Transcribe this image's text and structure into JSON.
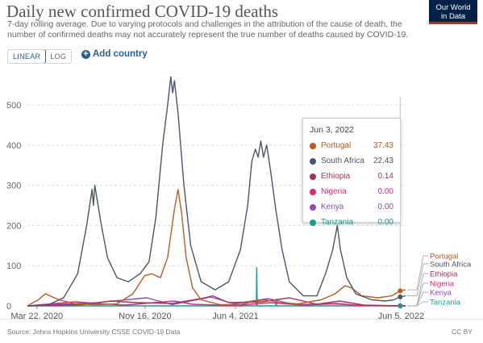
{
  "header": {
    "title": "Daily new confirmed COVID-19 deaths",
    "subtitle": "7-day rolling average. Due to varying protocols and challenges in the attribution of the cause of death, the number of confirmed deaths may not accurately represent the true number of deaths caused by COVID-19.",
    "logo_line1": "Our World",
    "logo_line2": "in Data"
  },
  "controls": {
    "linear_label": "LINEAR",
    "log_label": "LOG",
    "add_country_label": "Add country"
  },
  "tooltip": {
    "date": "Jun 3, 2022",
    "rows": [
      {
        "name": "Portugal",
        "value": "37.43",
        "color": "#c15a1e"
      },
      {
        "name": "South Africa",
        "value": "22.43",
        "color": "#4c5569"
      },
      {
        "name": "Ethiopia",
        "value": "0.14",
        "color": "#a63458"
      },
      {
        "name": "Nigeria",
        "value": "0.00",
        "color": "#e0257f"
      },
      {
        "name": "Kenya",
        "value": "0.00",
        "color": "#8e4bb5"
      },
      {
        "name": "Tanzania",
        "value": "0.00",
        "color": "#179c8a"
      }
    ]
  },
  "footer": {
    "source": "Source: Johns Hopkins University CSSE COVID-19 Data",
    "license": "CC BY"
  },
  "chart_data": {
    "type": "line",
    "title": "Daily new confirmed COVID-19 deaths",
    "xlabel": "",
    "ylabel": "",
    "ylim": [
      0,
      550
    ],
    "yticks": [
      0,
      100,
      200,
      300,
      400,
      500
    ],
    "x_start": "2020-03-01",
    "x_end": "2022-06-15",
    "xticks": [
      {
        "date": "2020-03-22",
        "label": "Mar 22, 2020"
      },
      {
        "date": "2020-11-16",
        "label": "Nov 16, 2020"
      },
      {
        "date": "2021-06-04",
        "label": "Jun 4, 2021"
      },
      {
        "date": "2022-06-05",
        "label": "Jun 5, 2022"
      }
    ],
    "grid": "horizontal dashed",
    "legend": "right (end labels)",
    "series": [
      {
        "name": "South Africa",
        "color": "#4c5569",
        "points": [
          [
            "2020-03-01",
            0
          ],
          [
            "2020-04-15",
            2
          ],
          [
            "2020-05-20",
            20
          ],
          [
            "2020-06-20",
            80
          ],
          [
            "2020-07-10",
            200
          ],
          [
            "2020-07-22",
            290
          ],
          [
            "2020-07-25",
            250
          ],
          [
            "2020-07-28",
            300
          ],
          [
            "2020-08-10",
            210
          ],
          [
            "2020-08-25",
            120
          ],
          [
            "2020-09-15",
            70
          ],
          [
            "2020-10-10",
            60
          ],
          [
            "2020-11-05",
            80
          ],
          [
            "2020-11-25",
            110
          ],
          [
            "2020-12-10",
            220
          ],
          [
            "2020-12-25",
            400
          ],
          [
            "2021-01-05",
            500
          ],
          [
            "2021-01-12",
            570
          ],
          [
            "2021-01-16",
            530
          ],
          [
            "2021-01-20",
            560
          ],
          [
            "2021-01-28",
            480
          ],
          [
            "2021-02-10",
            300
          ],
          [
            "2021-02-25",
            150
          ],
          [
            "2021-03-20",
            60
          ],
          [
            "2021-04-20",
            40
          ],
          [
            "2021-05-20",
            60
          ],
          [
            "2021-06-15",
            140
          ],
          [
            "2021-07-01",
            250
          ],
          [
            "2021-07-10",
            360
          ],
          [
            "2021-07-18",
            390
          ],
          [
            "2021-07-24",
            370
          ],
          [
            "2021-07-30",
            410
          ],
          [
            "2021-08-05",
            370
          ],
          [
            "2021-08-12",
            400
          ],
          [
            "2021-08-20",
            340
          ],
          [
            "2021-09-01",
            240
          ],
          [
            "2021-09-15",
            140
          ],
          [
            "2021-10-01",
            60
          ],
          [
            "2021-11-01",
            25
          ],
          [
            "2021-12-01",
            25
          ],
          [
            "2021-12-20",
            80
          ],
          [
            "2022-01-05",
            140
          ],
          [
            "2022-01-15",
            200
          ],
          [
            "2022-01-22",
            140
          ],
          [
            "2022-02-05",
            70
          ],
          [
            "2022-02-25",
            30
          ],
          [
            "2022-04-01",
            15
          ],
          [
            "2022-05-01",
            12
          ],
          [
            "2022-05-20",
            15
          ],
          [
            "2022-06-03",
            22.43
          ],
          [
            "2022-06-15",
            25
          ]
        ]
      },
      {
        "name": "Portugal",
        "color": "#c15a1e",
        "points": [
          [
            "2020-03-01",
            0
          ],
          [
            "2020-03-25",
            15
          ],
          [
            "2020-04-10",
            30
          ],
          [
            "2020-05-10",
            15
          ],
          [
            "2020-06-15",
            5
          ],
          [
            "2020-08-01",
            3
          ],
          [
            "2020-09-15",
            5
          ],
          [
            "2020-10-20",
            30
          ],
          [
            "2020-11-15",
            75
          ],
          [
            "2020-12-01",
            80
          ],
          [
            "2020-12-20",
            70
          ],
          [
            "2021-01-05",
            120
          ],
          [
            "2021-01-20",
            240
          ],
          [
            "2021-01-28",
            290
          ],
          [
            "2021-02-05",
            230
          ],
          [
            "2021-02-15",
            120
          ],
          [
            "2021-03-01",
            45
          ],
          [
            "2021-03-20",
            15
          ],
          [
            "2021-05-01",
            3
          ],
          [
            "2021-06-15",
            3
          ],
          [
            "2021-07-15",
            12
          ],
          [
            "2021-08-10",
            15
          ],
          [
            "2021-09-10",
            8
          ],
          [
            "2021-10-20",
            5
          ],
          [
            "2021-12-10",
            15
          ],
          [
            "2022-01-10",
            30
          ],
          [
            "2022-02-01",
            50
          ],
          [
            "2022-02-15",
            45
          ],
          [
            "2022-03-10",
            25
          ],
          [
            "2022-04-15",
            20
          ],
          [
            "2022-05-15",
            25
          ],
          [
            "2022-06-03",
            37.43
          ],
          [
            "2022-06-15",
            40
          ]
        ]
      },
      {
        "name": "Ethiopia",
        "color": "#a63458",
        "points": [
          [
            "2020-03-01",
            0
          ],
          [
            "2020-07-01",
            3
          ],
          [
            "2020-09-01",
            12
          ],
          [
            "2020-11-01",
            8
          ],
          [
            "2021-01-15",
            6
          ],
          [
            "2021-03-20",
            18
          ],
          [
            "2021-04-15",
            25
          ],
          [
            "2021-05-20",
            8
          ],
          [
            "2021-08-01",
            10
          ],
          [
            "2021-10-01",
            20
          ],
          [
            "2021-12-01",
            4
          ],
          [
            "2022-01-20",
            12
          ],
          [
            "2022-03-15",
            2
          ],
          [
            "2022-06-03",
            0.14
          ],
          [
            "2022-06-15",
            0
          ]
        ]
      },
      {
        "name": "Nigeria",
        "color": "#e0257f",
        "points": [
          [
            "2020-03-01",
            0
          ],
          [
            "2020-06-15",
            10
          ],
          [
            "2020-08-01",
            6
          ],
          [
            "2020-10-01",
            2
          ],
          [
            "2021-01-20",
            12
          ],
          [
            "2021-03-01",
            4
          ],
          [
            "2021-06-01",
            1
          ],
          [
            "2021-08-20",
            8
          ],
          [
            "2021-11-01",
            2
          ],
          [
            "2022-01-05",
            5
          ],
          [
            "2022-03-15",
            1
          ],
          [
            "2022-06-03",
            0
          ],
          [
            "2022-06-15",
            0
          ]
        ]
      },
      {
        "name": "Kenya",
        "color": "#8e4bb5",
        "points": [
          [
            "2020-03-01",
            0
          ],
          [
            "2020-08-01",
            8
          ],
          [
            "2020-11-20",
            20
          ],
          [
            "2021-01-15",
            3
          ],
          [
            "2021-04-10",
            22
          ],
          [
            "2021-06-01",
            5
          ],
          [
            "2021-08-15",
            18
          ],
          [
            "2021-10-15",
            3
          ],
          [
            "2022-01-15",
            6
          ],
          [
            "2022-03-01",
            1
          ],
          [
            "2022-06-03",
            0
          ],
          [
            "2022-06-15",
            0
          ]
        ]
      },
      {
        "name": "Tanzania",
        "color": "#179c8a",
        "points": [
          [
            "2020-03-01",
            0
          ],
          [
            "2021-07-20",
            0
          ],
          [
            "2021-07-21",
            95
          ],
          [
            "2021-07-22",
            0
          ],
          [
            "2021-09-01",
            0
          ],
          [
            "2021-09-02",
            12
          ],
          [
            "2021-09-03",
            0
          ],
          [
            "2022-06-03",
            0
          ],
          [
            "2022-06-15",
            0
          ]
        ]
      }
    ]
  }
}
